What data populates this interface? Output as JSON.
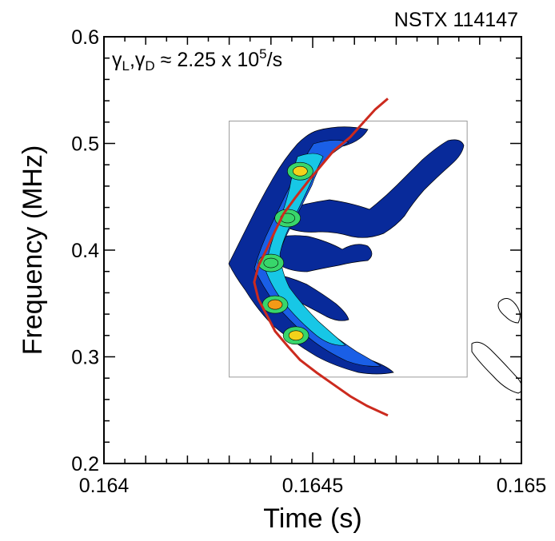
{
  "chart_data": {
    "type": "heatmap",
    "title": "NSTX 114147",
    "annotation": {
      "symbol_l": "γ",
      "sub_l": "L",
      "comma": ",",
      "symbol_d": "γ",
      "sub_d": "D",
      "approx": " ≈ 2.25 x 10",
      "exponent": "5",
      "unit": "/s"
    },
    "xlabel": "Time (s)",
    "ylabel": "Frequency (MHz)",
    "xlim": [
      0.164,
      0.165
    ],
    "ylim": [
      0.2,
      0.6
    ],
    "x_ticks": [
      {
        "value": 0.164,
        "label": "0.164"
      },
      {
        "value": 0.1645,
        "label": "0.1645"
      },
      {
        "value": 0.165,
        "label": "0.165"
      }
    ],
    "y_ticks": [
      {
        "value": 0.2,
        "label": "0.2"
      },
      {
        "value": 0.3,
        "label": "0.3"
      },
      {
        "value": 0.4,
        "label": "0.4"
      },
      {
        "value": 0.5,
        "label": "0.5"
      },
      {
        "value": 0.6,
        "label": "0.6"
      }
    ],
    "spectrogram_box": {
      "x": [
        0.1643,
        0.16487
      ],
      "y": [
        0.281,
        0.521
      ]
    },
    "model_curve": {
      "name": "chirp-model",
      "color": "#cc2a1e",
      "x": [
        0.16468,
        0.16465,
        0.16462,
        0.16459,
        0.16455,
        0.16452,
        0.16449,
        0.16446,
        0.16443,
        0.16441,
        0.16439,
        0.16437,
        0.16436,
        0.16437,
        0.16439,
        0.16441,
        0.16444,
        0.16447,
        0.16451,
        0.16455,
        0.16459,
        0.16463,
        0.16468
      ],
      "y": [
        0.542,
        0.532,
        0.519,
        0.506,
        0.493,
        0.479,
        0.465,
        0.45,
        0.434,
        0.418,
        0.401,
        0.385,
        0.37,
        0.354,
        0.339,
        0.324,
        0.31,
        0.297,
        0.285,
        0.274,
        0.263,
        0.254,
        0.245
      ]
    },
    "colors": {
      "background_blue": "#082a9a",
      "mid_blue": "#1a5fe6",
      "cyan": "#17c7e6",
      "green": "#38d66b",
      "yellow": "#f3d21a",
      "orange": "#f49a17",
      "contour": "#000000"
    },
    "hotspots": [
      {
        "x": 0.16447,
        "y": 0.474,
        "level": "yellow"
      },
      {
        "x": 0.16444,
        "y": 0.43,
        "level": "green"
      },
      {
        "x": 0.1644,
        "y": 0.388,
        "level": "green"
      },
      {
        "x": 0.16441,
        "y": 0.349,
        "level": "orange"
      },
      {
        "x": 0.16446,
        "y": 0.32,
        "level": "yellow"
      }
    ]
  }
}
